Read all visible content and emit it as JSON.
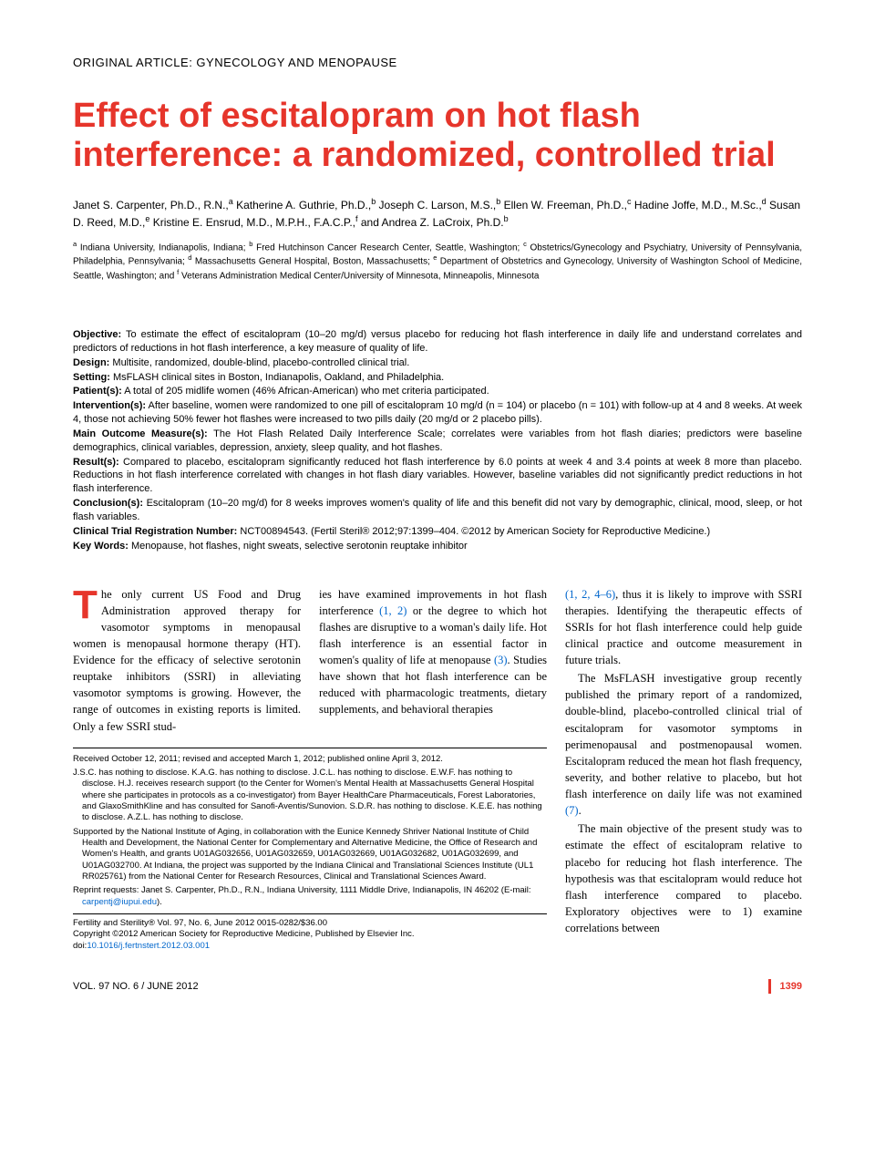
{
  "colors": {
    "accent": "#e6352b",
    "link": "#0066cc",
    "text": "#000000",
    "bg": "#ffffff"
  },
  "article_type": "ORIGINAL ARTICLE: GYNECOLOGY AND MENOPAUSE",
  "title": "Effect of escitalopram on hot flash interference: a randomized, controlled trial",
  "authors_html": "Janet S. Carpenter, Ph.D., R.N.,<sup>a</sup> Katherine A. Guthrie, Ph.D.,<sup>b</sup> Joseph C. Larson, M.S.,<sup>b</sup> Ellen W. Freeman, Ph.D.,<sup>c</sup> Hadine Joffe, M.D., M.Sc.,<sup>d</sup> Susan D. Reed, M.D.,<sup>e</sup> Kristine E. Ensrud, M.D., M.P.H., F.A.C.P.,<sup>f</sup> and Andrea Z. LaCroix, Ph.D.<sup>b</sup>",
  "affiliations_html": "<sup>a</sup> Indiana University, Indianapolis, Indiana; <sup>b</sup> Fred Hutchinson Cancer Research Center, Seattle, Washington; <sup>c</sup> Obstetrics/Gynecology and Psychiatry, University of Pennsylvania, Philadelphia, Pennsylvania; <sup>d</sup> Massachusetts General Hospital, Boston, Massachusetts; <sup>e</sup> Department of Obstetrics and Gynecology, University of Washington School of Medicine, Seattle, Washington; and <sup>f</sup> Veterans Administration Medical Center/University of Minnesota, Minneapolis, Minnesota",
  "abstract": {
    "objective": "To estimate the effect of escitalopram (10–20 mg/d) versus placebo for reducing hot flash interference in daily life and understand correlates and predictors of reductions in hot flash interference, a key measure of quality of life.",
    "design": "Multisite, randomized, double-blind, placebo-controlled clinical trial.",
    "setting": "MsFLASH clinical sites in Boston, Indianapolis, Oakland, and Philadelphia.",
    "patients": "A total of 205 midlife women (46% African-American) who met criteria participated.",
    "interventions": "After baseline, women were randomized to one pill of escitalopram 10 mg/d (n = 104) or placebo (n = 101) with follow-up at 4 and 8 weeks. At week 4, those not achieving 50% fewer hot flashes were increased to two pills daily (20 mg/d or 2 placebo pills).",
    "main_outcome": "The Hot Flash Related Daily Interference Scale; correlates were variables from hot flash diaries; predictors were baseline demographics, clinical variables, depression, anxiety, sleep quality, and hot flashes.",
    "results": "Compared to placebo, escitalopram significantly reduced hot flash interference by 6.0 points at week 4 and 3.4 points at week 8 more than placebo. Reductions in hot flash interference correlated with changes in hot flash diary variables. However, baseline variables did not significantly predict reductions in hot flash interference.",
    "conclusions": "Escitalopram (10–20 mg/d) for 8 weeks improves women's quality of life and this benefit did not vary by demographic, clinical, mood, sleep, or hot flash variables.",
    "registration": "NCT00894543. (Fertil Steril® 2012;97:1399–404. ©2012 by American Society for Reproductive Medicine.)",
    "keywords": "Menopause, hot flashes, night sweats, selective serotonin reuptake inhibitor"
  },
  "body": {
    "col1": "he only current US Food and Drug Administration approved therapy for vasomotor symptoms in menopausal women is menopausal hormone therapy (HT). Evidence for the efficacy of selective serotonin reuptake inhibitors (SSRI) in alleviating vasomotor symptoms is growing. However, the range of outcomes in existing reports is limited. Only a few SSRI stud-",
    "col2_a": "ies have examined improvements in hot flash interference ",
    "col2_link1": "(1, 2)",
    "col2_b": " or the degree to which hot flashes are disruptive to a woman's daily life. Hot flash interference is an essential factor in women's quality of life at menopause ",
    "col2_link2": "(3)",
    "col2_c": ". Studies have shown that hot flash interference can be reduced with pharmacologic treatments, dietary supplements, and behavioral therapies",
    "col3_link1": "(1, 2, 4–6)",
    "col3_a": ", thus it is likely to improve with SSRI therapies. Identifying the therapeutic effects of SSRIs for hot flash interference could help guide clinical practice and outcome measurement in future trials.",
    "col3_b": "The MsFLASH investigative group recently published the primary report of a randomized, double-blind, placebo-controlled clinical trial of escitalopram for vasomotor symptoms in perimenopausal and postmenopausal women. Escitalopram reduced the mean hot flash frequency, severity, and bother relative to placebo, but hot flash interference on daily life was not examined ",
    "col3_link2": "(7)",
    "col3_c": ".",
    "col3_d": "The main objective of the present study was to estimate the effect of escitalopram relative to placebo for reducing hot flash interference. The hypothesis was that escitalopram would reduce hot flash interference compared to placebo. Exploratory objectives were to 1) examine correlations between"
  },
  "footnotes": {
    "received": "Received October 12, 2011; revised and accepted March 1, 2012; published online April 3, 2012.",
    "disclosures": "J.S.C. has nothing to disclose. K.A.G. has nothing to disclose. J.C.L. has nothing to disclose. E.W.F. has nothing to disclose. H.J. receives research support (to the Center for Women's Mental Health at Massachusetts General Hospital where she participates in protocols as a co-investigator) from Bayer HealthCare Pharmaceuticals, Forest Laboratories, and GlaxoSmithKline and has consulted for Sanofi-Aventis/Sunovion. S.D.R. has nothing to disclose. K.E.E. has nothing to disclose. A.Z.L. has nothing to disclose.",
    "supported": "Supported by the National Institute of Aging, in collaboration with the Eunice Kennedy Shriver National Institute of Child Health and Development, the National Center for Complementary and Alternative Medicine, the Office of Research and Women's Health, and grants U01AG032656, U01AG032659, U01AG032669, U01AG032682, U01AG032699, and U01AG032700. At Indiana, the project was supported by the Indiana Clinical and Translational Sciences Institute (UL1 RR025761) from the National Center for Research Resources, Clinical and Translational Sciences Award.",
    "reprint_a": "Reprint requests: Janet S. Carpenter, Ph.D., R.N., Indiana University, 1111 Middle Drive, Indianapolis, IN 46202 (E-mail: ",
    "reprint_email": "carpentj@iupui.edu",
    "reprint_b": ")."
  },
  "pubinfo": {
    "line1": "Fertility and Sterility® Vol. 97, No. 6, June 2012 0015-0282/$36.00",
    "line2": "Copyright ©2012 American Society for Reproductive Medicine, Published by Elsevier Inc.",
    "doi_label": "doi:",
    "doi": "10.1016/j.fertnstert.2012.03.001"
  },
  "footer": {
    "left": "VOL. 97 NO. 6 / JUNE 2012",
    "page": "1399"
  }
}
